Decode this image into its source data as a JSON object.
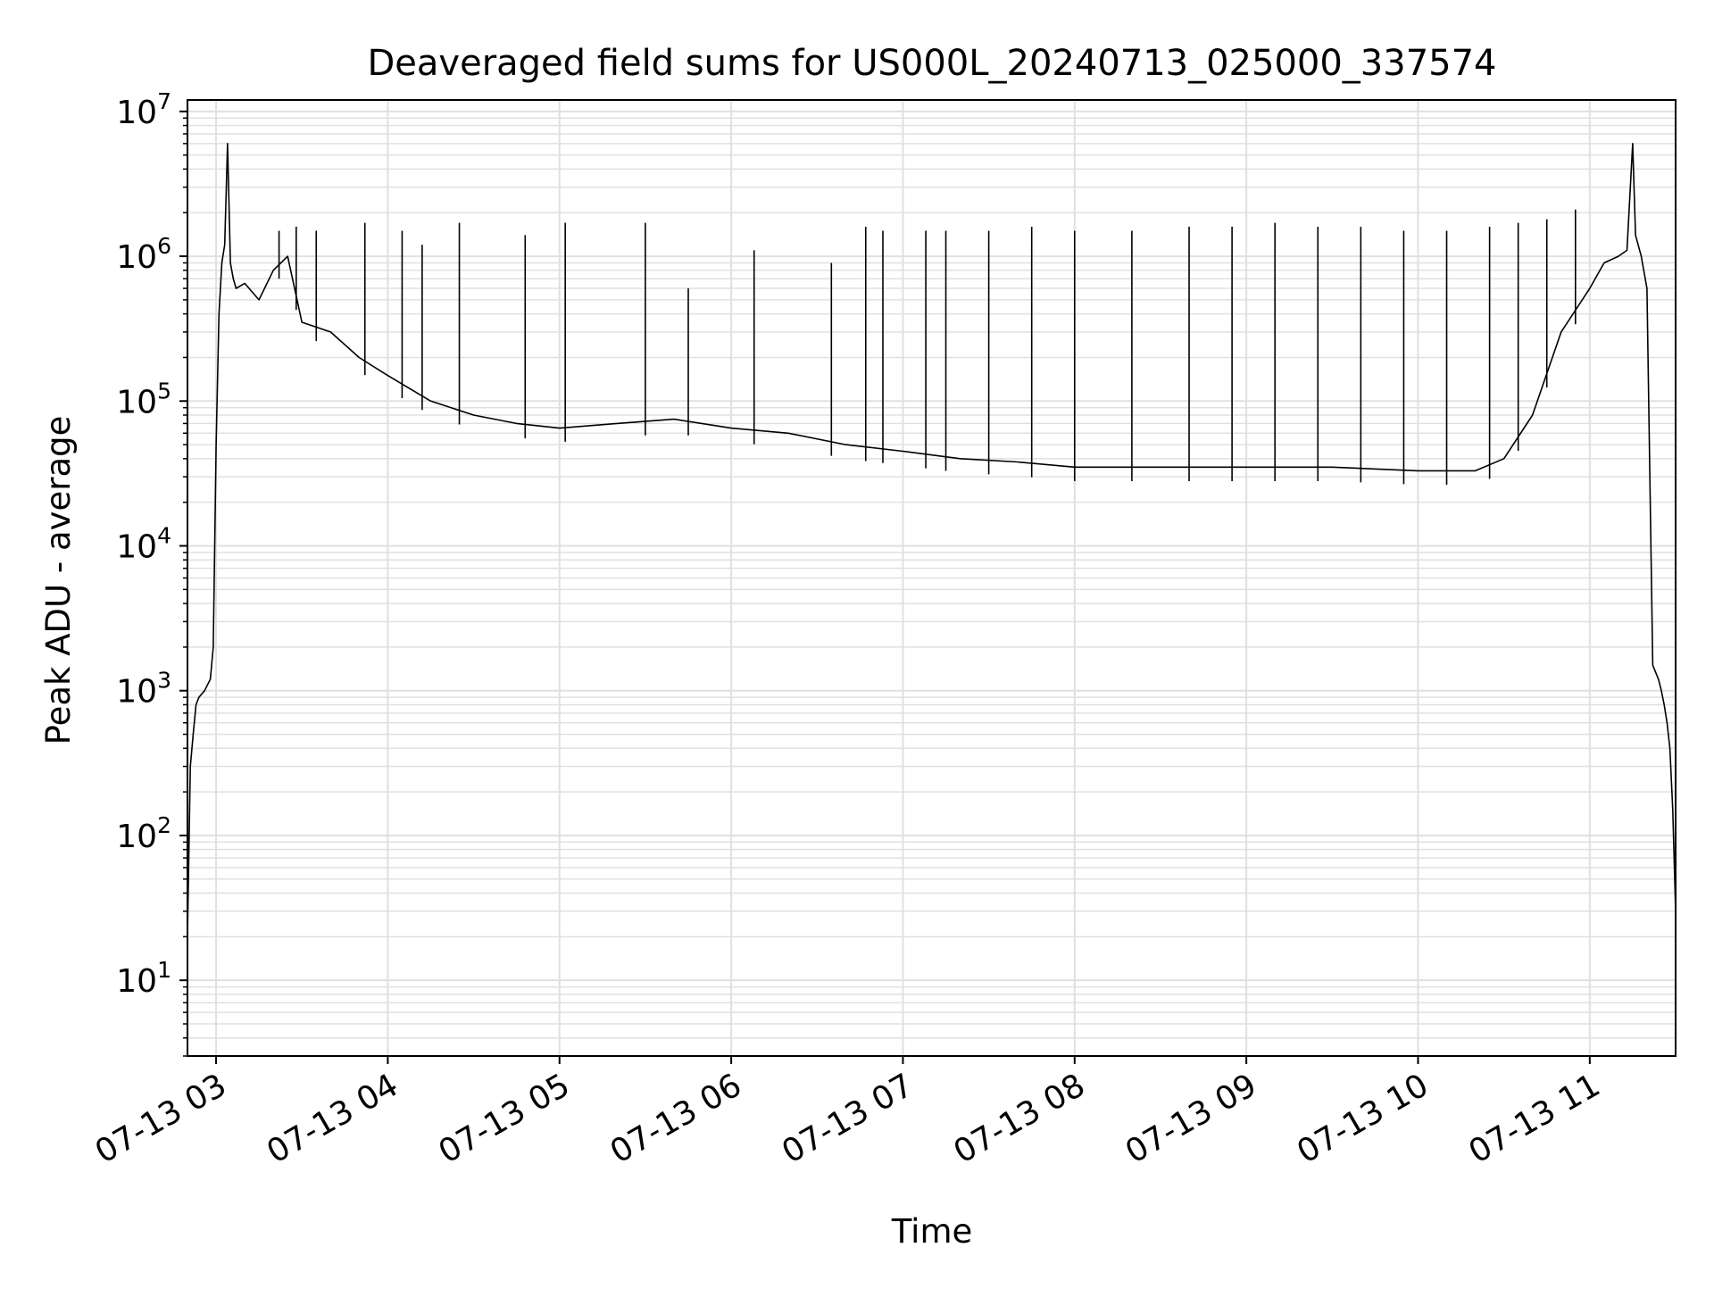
{
  "chart_data": {
    "type": "line",
    "title": "Deaveraged field sums for US000L_20240713_025000_337574",
    "xlabel": "Time",
    "ylabel": "Peak ADU - average",
    "yscale": "log",
    "xlim": [
      "07-13 02:50",
      "07-13 11:30"
    ],
    "ylim": [
      3,
      12000000
    ],
    "x_ticks": [
      {
        "value": "07-13 03:00",
        "label": "07-13 03"
      },
      {
        "value": "07-13 04:00",
        "label": "07-13 04"
      },
      {
        "value": "07-13 05:00",
        "label": "07-13 05"
      },
      {
        "value": "07-13 06:00",
        "label": "07-13 06"
      },
      {
        "value": "07-13 07:00",
        "label": "07-13 07"
      },
      {
        "value": "07-13 08:00",
        "label": "07-13 08"
      },
      {
        "value": "07-13 09:00",
        "label": "07-13 09"
      },
      {
        "value": "07-13 10:00",
        "label": "07-13 10"
      },
      {
        "value": "07-13 11:00",
        "label": "07-13 11"
      }
    ],
    "y_ticks": [
      {
        "value": 10,
        "base": "10",
        "exp": "1"
      },
      {
        "value": 100,
        "base": "10",
        "exp": "2"
      },
      {
        "value": 1000,
        "base": "10",
        "exp": "3"
      },
      {
        "value": 10000,
        "base": "10",
        "exp": "4"
      },
      {
        "value": 100000,
        "base": "10",
        "exp": "5"
      },
      {
        "value": 1000000,
        "base": "10",
        "exp": "6"
      },
      {
        "value": 10000000,
        "base": "10",
        "exp": "7"
      }
    ],
    "grid": true,
    "line_color": "#000000",
    "grid_color": "#e0e0e0",
    "series": [
      {
        "x": [
          "07-13 02:50",
          "07-13 02:51",
          "07-13 02:52",
          "07-13 02:53",
          "07-13 02:54",
          "07-13 02:56",
          "07-13 02:58",
          "07-13 02:59",
          "07-13 03:00",
          "07-13 03:01",
          "07-13 03:02",
          "07-13 03:03",
          "07-13 03:04",
          "07-13 03:05",
          "07-13 03:06",
          "07-13 03:07",
          "07-13 03:10",
          "07-13 03:15",
          "07-13 03:20",
          "07-13 03:25",
          "07-13 03:30",
          "07-13 03:40",
          "07-13 03:50",
          "07-13 04:00",
          "07-13 04:15",
          "07-13 04:30",
          "07-13 04:45",
          "07-13 05:00",
          "07-13 05:20",
          "07-13 05:40",
          "07-13 06:00",
          "07-13 06:20",
          "07-13 06:40",
          "07-13 07:00",
          "07-13 07:20",
          "07-13 07:40",
          "07-13 08:00",
          "07-13 08:30",
          "07-13 09:00",
          "07-13 09:30",
          "07-13 10:00",
          "07-13 10:20",
          "07-13 10:30",
          "07-13 10:40",
          "07-13 10:50",
          "07-13 11:00",
          "07-13 11:05",
          "07-13 11:10",
          "07-13 11:13",
          "07-13 11:15",
          "07-13 11:16",
          "07-13 11:18",
          "07-13 11:20",
          "07-13 11:22",
          "07-13 11:24",
          "07-13 11:25",
          "07-13 11:26",
          "07-13 11:27",
          "07-13 11:28",
          "07-13 11:29",
          "07-13 11:30"
        ],
        "y": [
          20,
          300,
          500,
          800,
          900,
          1000,
          1200,
          2000,
          50000,
          400000,
          900000,
          1200000,
          6000000,
          900000,
          700000,
          600000,
          650000,
          500000,
          800000,
          1000000,
          350000,
          300000,
          200000,
          150000,
          100000,
          80000,
          70000,
          65000,
          70000,
          75000,
          65000,
          60000,
          50000,
          45000,
          40000,
          38000,
          35000,
          35000,
          35000,
          35000,
          33000,
          33000,
          40000,
          80000,
          300000,
          600000,
          900000,
          1000000,
          1100000,
          6000000,
          1400000,
          1000000,
          600000,
          1500,
          1200,
          1000,
          800,
          600,
          400,
          150,
          30
        ]
      }
    ],
    "spikes": [
      {
        "x": "07-13 03:22",
        "y": 1500000
      },
      {
        "x": "07-13 03:28",
        "y": 1600000
      },
      {
        "x": "07-13 03:35",
        "y": 1500000
      },
      {
        "x": "07-13 03:52",
        "y": 1700000
      },
      {
        "x": "07-13 04:05",
        "y": 1500000
      },
      {
        "x": "07-13 04:12",
        "y": 1200000
      },
      {
        "x": "07-13 04:25",
        "y": 1700000
      },
      {
        "x": "07-13 04:48",
        "y": 1400000
      },
      {
        "x": "07-13 05:02",
        "y": 1700000
      },
      {
        "x": "07-13 05:30",
        "y": 1700000
      },
      {
        "x": "07-13 05:45",
        "y": 600000
      },
      {
        "x": "07-13 06:08",
        "y": 1100000
      },
      {
        "x": "07-13 06:35",
        "y": 900000
      },
      {
        "x": "07-13 06:47",
        "y": 1600000
      },
      {
        "x": "07-13 06:53",
        "y": 1500000
      },
      {
        "x": "07-13 07:08",
        "y": 1500000
      },
      {
        "x": "07-13 07:15",
        "y": 1500000
      },
      {
        "x": "07-13 07:30",
        "y": 1500000
      },
      {
        "x": "07-13 07:45",
        "y": 1600000
      },
      {
        "x": "07-13 08:00",
        "y": 1500000
      },
      {
        "x": "07-13 08:20",
        "y": 1500000
      },
      {
        "x": "07-13 08:40",
        "y": 1600000
      },
      {
        "x": "07-13 08:55",
        "y": 1600000
      },
      {
        "x": "07-13 09:10",
        "y": 1700000
      },
      {
        "x": "07-13 09:25",
        "y": 1600000
      },
      {
        "x": "07-13 09:40",
        "y": 1600000
      },
      {
        "x": "07-13 09:55",
        "y": 1500000
      },
      {
        "x": "07-13 10:10",
        "y": 1500000
      },
      {
        "x": "07-13 10:25",
        "y": 1600000
      },
      {
        "x": "07-13 10:35",
        "y": 1700000
      },
      {
        "x": "07-13 10:45",
        "y": 1800000
      },
      {
        "x": "07-13 10:55",
        "y": 2100000
      }
    ]
  }
}
